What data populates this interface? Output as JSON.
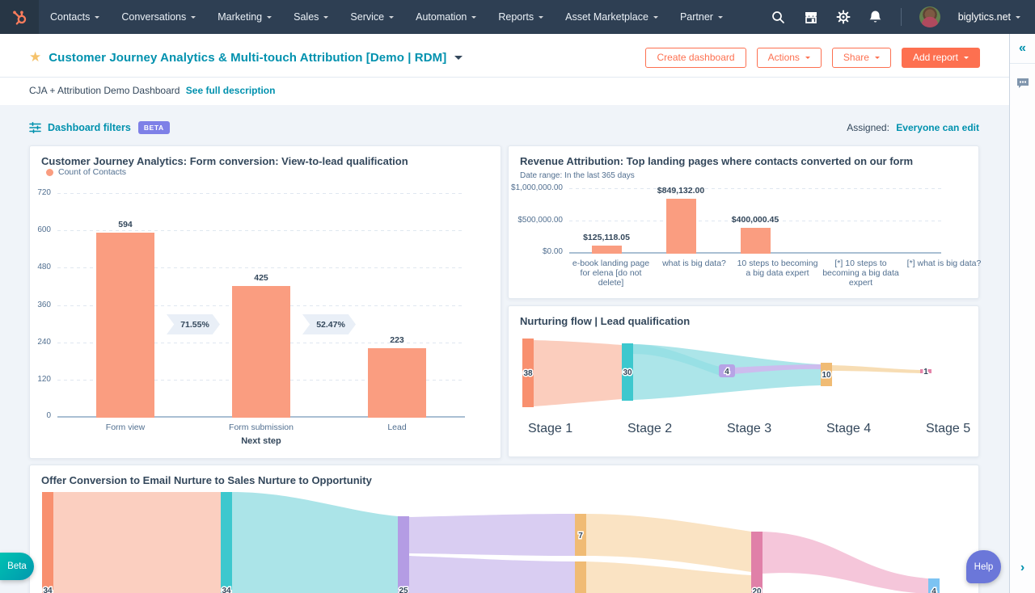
{
  "nav": {
    "items": [
      "Contacts",
      "Conversations",
      "Marketing",
      "Sales",
      "Service",
      "Automation",
      "Reports",
      "Asset Marketplace",
      "Partner"
    ],
    "account_name": "biglytics.net",
    "icons": [
      "search-icon",
      "marketplace-icon",
      "settings-icon",
      "notifications-icon"
    ]
  },
  "header": {
    "title": "Customer Journey Analytics & Multi-touch Attribution [Demo | RDM]",
    "description": "CJA + Attribution Demo Dashboard",
    "description_link": "See full description",
    "buttons": {
      "create_dashboard": "Create dashboard",
      "actions": "Actions",
      "share": "Share",
      "add_report": "Add report"
    }
  },
  "filters": {
    "label": "Dashboard filters",
    "beta": "BETA",
    "assigned_label": "Assigned:",
    "assigned_value": "Everyone can edit"
  },
  "colors": {
    "accent_orange": "#fd7050",
    "link_teal": "#0091ae",
    "bar_salmon": "#fa9d80",
    "nav_navy": "#2e3f53"
  },
  "chart_data": [
    {
      "type": "bar",
      "title": "Customer Journey Analytics: Form conversion: View-to-lead qualification",
      "legend": [
        "Count of Contacts"
      ],
      "categories": [
        "Form view",
        "Form submission",
        "Lead"
      ],
      "values": [
        594,
        425,
        223
      ],
      "conversion_badges": [
        "71.55%",
        "52.47%"
      ],
      "xlabel": "Next step",
      "yticks": [
        0,
        120,
        240,
        360,
        480,
        600,
        720
      ],
      "ylim": [
        0,
        720
      ],
      "grid": "dashed-horizontal",
      "legend_position": "top-left"
    },
    {
      "type": "bar",
      "title": "Revenue Attribution: Top landing pages where contacts converted on our form",
      "subtitle": "Date range: In the last 365 days",
      "categories": [
        "e-book landing page for elena [do not delete]",
        "what is big data?",
        "10 steps to becoming a big data expert",
        "[*] 10 steps to becoming a big data expert",
        "[*] what is big data?"
      ],
      "values": [
        125118.05,
        849132.0,
        400000.45,
        0,
        0
      ],
      "value_labels": [
        "$125,118.05",
        "$849,132.00",
        "$400,000.45",
        "",
        ""
      ],
      "yticks": [
        0,
        500000,
        1000000
      ],
      "ytick_labels": [
        "$0.00",
        "$500,000.00",
        "$1,000,000.00"
      ],
      "ylim": [
        0,
        1000000
      ],
      "grid": "dashed-horizontal"
    },
    {
      "type": "sankey",
      "title": "Nurturing flow | Lead qualification",
      "stages": [
        "Stage 1",
        "Stage 2",
        "Stage 3",
        "Stage 4",
        "Stage 5"
      ],
      "values": [
        38,
        30,
        4,
        10,
        1
      ]
    },
    {
      "type": "sankey",
      "title": "Offer Conversion to Email Nurture to Sales Nurture to Opportunity",
      "node_values": [
        34,
        34,
        25,
        7,
        20,
        4
      ]
    }
  ],
  "floating": {
    "beta_label": "Beta",
    "help_label": "Help"
  },
  "right_rail": {
    "icons": [
      "collapse-double-chevron-icon",
      "comments-icon",
      "next-chevron-icon"
    ]
  }
}
